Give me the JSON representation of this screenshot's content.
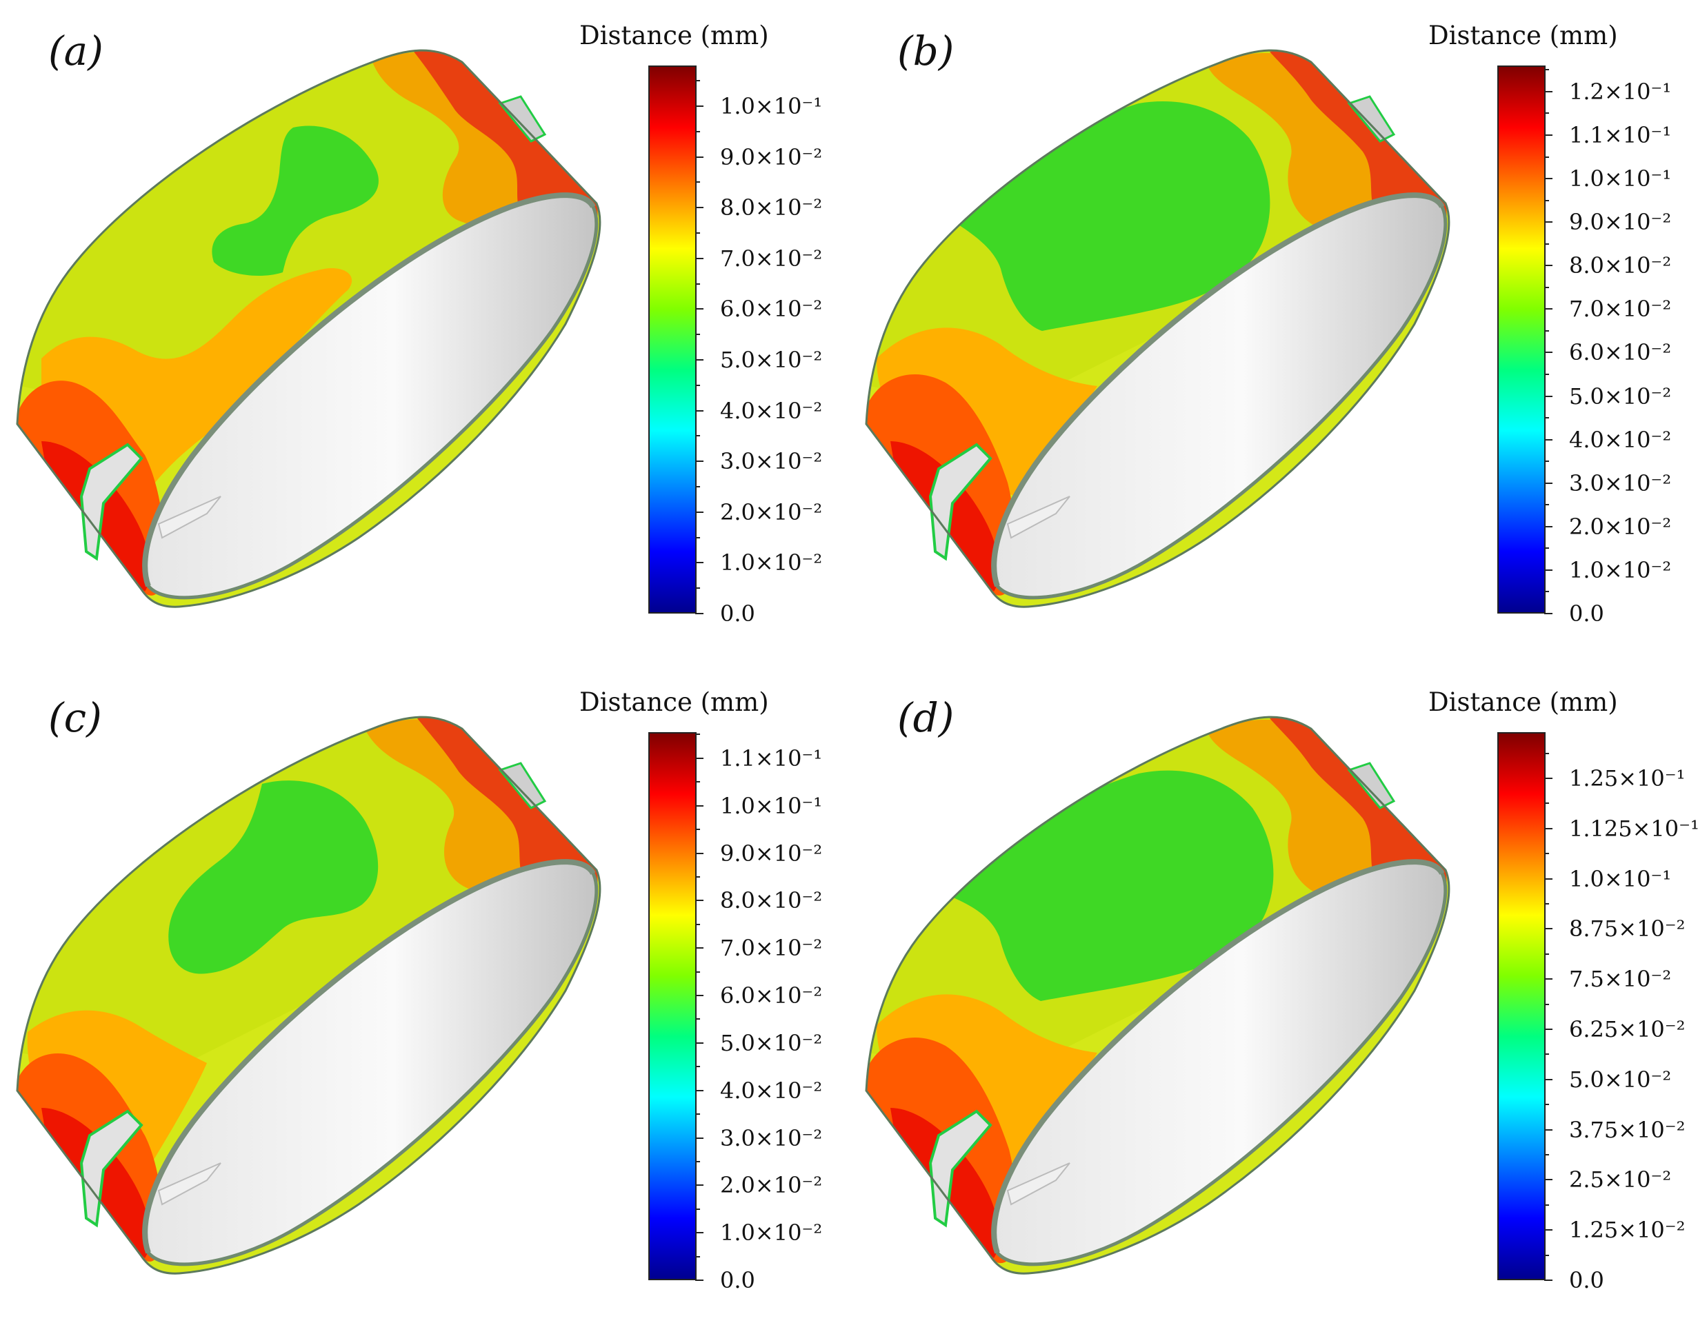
{
  "colormap": [
    "#00008f",
    "#0000ff",
    "#0080ff",
    "#00ffff",
    "#00ff80",
    "#80ff00",
    "#ffff00",
    "#ff8000",
    "#ff0000",
    "#800000"
  ],
  "panels": [
    {
      "letter": "(a)",
      "colorbar": {
        "title": "Distance (mm)",
        "ticks": [
          "0.0",
          "1.0×10⁻²",
          "2.0×10⁻²",
          "3.0×10⁻²",
          "4.0×10⁻²",
          "5.0×10⁻²",
          "6.0×10⁻²",
          "7.0×10⁻²",
          "8.0×10⁻²",
          "9.0×10⁻²",
          "1.0×10⁻¹"
        ],
        "tick_values": [
          0.0,
          0.01,
          0.02,
          0.03,
          0.04,
          0.05,
          0.06,
          0.07,
          0.08,
          0.09,
          0.1
        ],
        "range": [
          0.0,
          0.108
        ]
      }
    },
    {
      "letter": "(b)",
      "colorbar": {
        "title": "Distance (mm)",
        "ticks": [
          "0.0",
          "1.0×10⁻²",
          "2.0×10⁻²",
          "3.0×10⁻²",
          "4.0×10⁻²",
          "5.0×10⁻²",
          "6.0×10⁻²",
          "7.0×10⁻²",
          "8.0×10⁻²",
          "9.0×10⁻²",
          "1.0×10⁻¹",
          "1.1×10⁻¹",
          "1.2×10⁻¹"
        ],
        "tick_values": [
          0.0,
          0.01,
          0.02,
          0.03,
          0.04,
          0.05,
          0.06,
          0.07,
          0.08,
          0.09,
          0.1,
          0.11,
          0.12
        ],
        "range": [
          0.0,
          0.126
        ]
      }
    },
    {
      "letter": "(c)",
      "colorbar": {
        "title": "Distance (mm)",
        "ticks": [
          "0.0",
          "1.0×10⁻²",
          "2.0×10⁻²",
          "3.0×10⁻²",
          "4.0×10⁻²",
          "5.0×10⁻²",
          "6.0×10⁻²",
          "7.0×10⁻²",
          "8.0×10⁻²",
          "9.0×10⁻²",
          "1.0×10⁻¹",
          "1.1×10⁻¹"
        ],
        "tick_values": [
          0.0,
          0.01,
          0.02,
          0.03,
          0.04,
          0.05,
          0.06,
          0.07,
          0.08,
          0.09,
          0.1,
          0.11
        ],
        "range": [
          0.0,
          0.1155
        ]
      }
    },
    {
      "letter": "(d)",
      "colorbar": {
        "title": "Distance (mm)",
        "ticks": [
          "0.0",
          "1.25×10⁻²",
          "2.5×10⁻²",
          "3.75×10⁻²",
          "5.0×10⁻²",
          "6.25×10⁻²",
          "7.5×10⁻²",
          "8.75×10⁻²",
          "1.0×10⁻¹",
          "1.125×10⁻¹",
          "1.25×10⁻¹"
        ],
        "tick_values": [
          0.0,
          0.0125,
          0.025,
          0.0375,
          0.05,
          0.0625,
          0.075,
          0.0875,
          0.1,
          0.1125,
          0.125
        ],
        "range": [
          0.0,
          0.1365
        ]
      }
    }
  ]
}
